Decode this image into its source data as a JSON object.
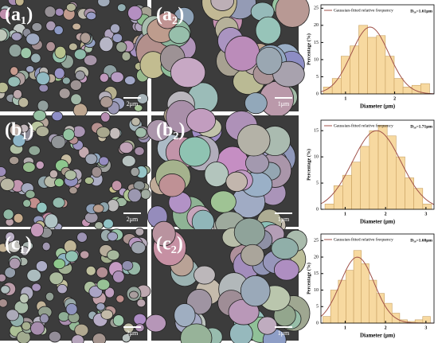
{
  "images": [
    {
      "label": "(a₁)",
      "scale": "2μm"
    },
    {
      "label": "(a₂)",
      "scale": "1μm"
    },
    {
      "label": "(b₁)",
      "scale": "2μm"
    },
    {
      "label": "(b₂)",
      "scale": "1μm"
    },
    {
      "label": "(c₁)",
      "scale": "2μm"
    },
    {
      "label": "(c₂)",
      "scale": "1μm"
    }
  ],
  "chart_data": [
    {
      "type": "histogram",
      "ylabel": "Percentage (%)",
      "xlabel": "Diameter (μm)",
      "annotation": "D₅₀=1.61μm",
      "color": "#f7d9a0",
      "bins": [
        0.55,
        0.73,
        0.91,
        1.09,
        1.27,
        1.45,
        1.63,
        1.81,
        1.99,
        2.17,
        2.35,
        2.53,
        2.71
      ],
      "values": [
        2,
        4.5,
        11,
        14,
        20,
        16.5,
        17,
        11,
        4.5,
        2,
        2.5,
        3
      ],
      "xlim": [
        0.5,
        2.8
      ],
      "ylim": [
        0,
        26
      ],
      "xticks": [
        1,
        2
      ],
      "yticks": [
        0,
        5,
        10,
        15,
        20,
        25
      ],
      "fit": {
        "name": "Gaussian-fitted relative frequency",
        "mean": 1.5,
        "sigma": 0.38,
        "peak": 19.5,
        "color": "#a0524a"
      }
    },
    {
      "type": "histogram",
      "ylabel": "Percentage (%)",
      "xlabel": "Diameter (μm)",
      "annotation": "D₅₀=1.71μm",
      "color": "#f7d9a0",
      "bins": [
        0.5,
        0.72,
        0.94,
        1.16,
        1.38,
        1.6,
        1.82,
        2.04,
        2.26,
        2.48,
        2.7,
        2.92,
        3.14
      ],
      "values": [
        1,
        4.5,
        6.5,
        9,
        12,
        15,
        16,
        14,
        10,
        6,
        4,
        1
      ],
      "xlim": [
        0.4,
        3.2
      ],
      "ylim": [
        0,
        17
      ],
      "xticks": [
        1,
        2,
        3
      ],
      "yticks": [
        0,
        5,
        10,
        15
      ],
      "fit": {
        "name": "Gaussian-fitted relative frequency",
        "mean": 1.78,
        "sigma": 0.6,
        "peak": 15,
        "color": "#a0524a"
      }
    },
    {
      "type": "histogram",
      "ylabel": "Percentage (%)",
      "xlabel": "Diameter (μm)",
      "annotation": "D₅₀=1.68μm",
      "color": "#f7d9a0",
      "bins": [
        0.45,
        0.64,
        0.83,
        1.02,
        1.21,
        1.4,
        1.59,
        1.78,
        1.97,
        2.16,
        2.35,
        2.54,
        2.73,
        2.92,
        3.11
      ],
      "values": [
        2,
        10,
        13,
        16,
        22,
        18,
        13,
        9,
        6,
        3,
        1,
        0.5,
        1,
        2
      ],
      "xlim": [
        0.4,
        3.2
      ],
      "ylim": [
        0,
        27
      ],
      "xticks": [
        1,
        2,
        3
      ],
      "yticks": [
        0,
        5,
        10,
        15,
        20,
        25
      ],
      "fit": {
        "name": "Gaussian-fitted relative frequency",
        "mean": 1.3,
        "sigma": 0.42,
        "peak": 20,
        "color": "#a0524a"
      }
    }
  ]
}
